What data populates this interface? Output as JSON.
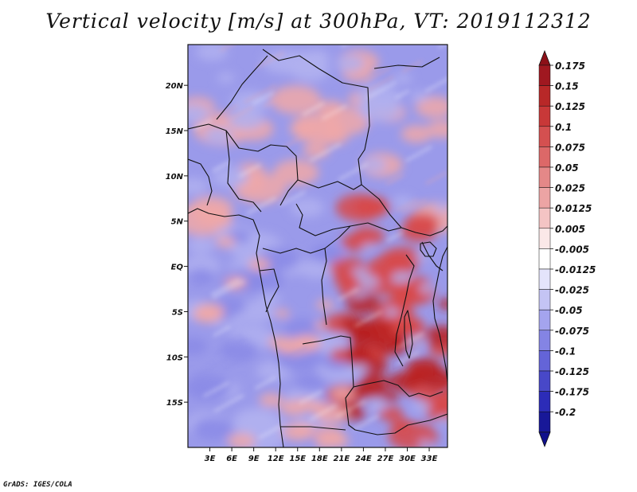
{
  "title": "Vertical velocity [m/s] at 300hPa, VT: 2019112312",
  "credit": "GrADS: IGES/COLA",
  "map": {
    "lon_min": 0,
    "lon_max": 35.5,
    "lat_min": -20,
    "lat_max": 24.5,
    "lat_labels": [
      "20N",
      "15N",
      "10N",
      "5N",
      "EQ",
      "5S",
      "10S",
      "15S"
    ],
    "lat_values": [
      20,
      15,
      10,
      5,
      0,
      -5,
      -10,
      -15
    ],
    "lon_labels": [
      "3E",
      "6E",
      "9E",
      "12E",
      "15E",
      "18E",
      "21E",
      "24E",
      "27E",
      "30E",
      "33E"
    ],
    "lon_values": [
      3,
      6,
      9,
      12,
      15,
      18,
      21,
      24,
      27,
      30,
      33
    ]
  },
  "colorbar": {
    "labels": [
      "0.175",
      "0.15",
      "0.125",
      "0.1",
      "0.075",
      "0.05",
      "0.025",
      "0.0125",
      "0.005",
      "-0.005",
      "-0.0125",
      "-0.025",
      "-0.05",
      "-0.075",
      "-0.1",
      "-0.125",
      "-0.175",
      "-0.2"
    ],
    "colors": [
      "#a01820",
      "#b82828",
      "#c83838",
      "#d45050",
      "#dc6868",
      "#e48888",
      "#eca4a4",
      "#f4c4c4",
      "#fbe8e8",
      "#ffffff",
      "#e4e4fb",
      "#c4c4f4",
      "#a4a4ee",
      "#8484e4",
      "#6464d8",
      "#4848c8",
      "#2c2cb8",
      "#181898"
    ],
    "top_color": "#8c1018",
    "bottom_color": "#10108c"
  },
  "regions": {
    "neutral_blue": "#8a8ae6",
    "light_blue": "#b0b0f0",
    "pink": "#f0a8a8",
    "red": "#d84848",
    "dark_red": "#b82020"
  }
}
